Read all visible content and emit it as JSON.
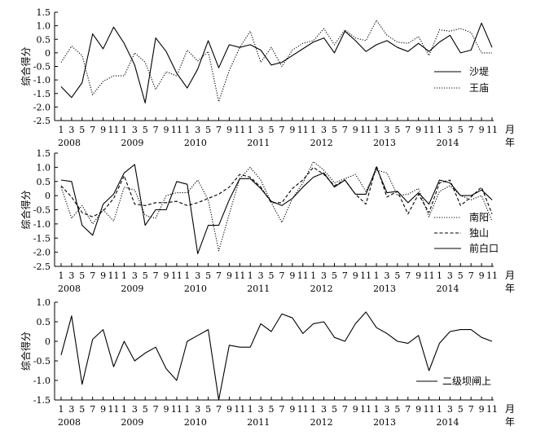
{
  "chart_data": [
    {
      "type": "line",
      "ylabel": "综合得分",
      "ylim": [
        -2.5,
        1.5
      ],
      "yticks": [
        "1.5",
        "1.0",
        "0.5",
        "0",
        "-0.5",
        "-1.0",
        "-1.5",
        "-2.0",
        "-2.5"
      ],
      "x_ticks": [
        "1",
        "3",
        "5",
        "7",
        "9",
        "11",
        "1",
        "3",
        "5",
        "7",
        "9",
        "11",
        "1",
        "3",
        "5",
        "7",
        "9",
        "11",
        "1",
        "3",
        "5",
        "7",
        "9",
        "11",
        "1",
        "3",
        "5",
        "7",
        "9",
        "11",
        "1",
        "3",
        "5",
        "7",
        "9",
        "11",
        "1",
        "3",
        "5",
        "7",
        "9",
        "11"
      ],
      "years": [
        "2008",
        "2009",
        "2010",
        "2011",
        "2012",
        "2013",
        "2014"
      ],
      "month_unit": "月",
      "year_unit": "年",
      "legend_position": "bottom-right",
      "series": [
        {
          "name": "沙堤",
          "style": "solid",
          "values": [
            -1.25,
            -1.65,
            -1.1,
            0.7,
            0.15,
            0.95,
            0.35,
            -0.45,
            -1.85,
            0.55,
            0.05,
            -0.75,
            -1.3,
            -0.6,
            0.45,
            -0.55,
            0.3,
            0.2,
            0.3,
            0.1,
            -0.45,
            -0.35,
            -0.1,
            0.15,
            0.4,
            0.55,
            0.0,
            0.8,
            0.45,
            0.05,
            0.3,
            0.45,
            0.2,
            0.05,
            0.35,
            0.05,
            0.4,
            0.65,
            0.0,
            0.1,
            1.1,
            0.2
          ]
        },
        {
          "name": "王庙",
          "style": "dotted",
          "values": [
            -0.35,
            0.25,
            -0.1,
            -1.55,
            -1.05,
            -0.85,
            -0.85,
            0.0,
            -0.35,
            -1.35,
            -0.7,
            -0.85,
            0.1,
            -0.3,
            0.05,
            -1.8,
            -0.65,
            0.2,
            0.8,
            -0.35,
            0.2,
            -0.5,
            0.1,
            0.35,
            0.45,
            0.9,
            0.3,
            0.85,
            0.55,
            0.45,
            1.2,
            0.65,
            0.4,
            0.35,
            0.6,
            -0.1,
            0.85,
            0.8,
            0.9,
            0.75,
            0.0,
            0.0
          ]
        }
      ]
    },
    {
      "type": "line",
      "ylabel": "综合得分",
      "ylim": [
        -2.5,
        1.5
      ],
      "yticks": [
        "1.5",
        "1.0",
        "0.5",
        "0",
        "-0.5",
        "-1.0",
        "-1.5",
        "-2.0",
        "-2.5"
      ],
      "x_ticks": [
        "1",
        "3",
        "5",
        "7",
        "9",
        "11",
        "1",
        "3",
        "5",
        "7",
        "9",
        "11",
        "1",
        "3",
        "5",
        "7",
        "9",
        "11",
        "1",
        "3",
        "5",
        "7",
        "9",
        "11",
        "1",
        "3",
        "5",
        "7",
        "9",
        "11",
        "1",
        "3",
        "5",
        "7",
        "9",
        "11",
        "1",
        "3",
        "5",
        "7",
        "9",
        "11"
      ],
      "years": [
        "2008",
        "2009",
        "2010",
        "2011",
        "2012",
        "2013",
        "2014"
      ],
      "month_unit": "月",
      "year_unit": "年",
      "legend_position": "bottom-right",
      "series": [
        {
          "name": "南阳",
          "style": "dotted",
          "values": [
            0.3,
            -0.8,
            -0.35,
            -1.0,
            -0.5,
            -0.9,
            0.3,
            0.2,
            -0.7,
            -0.8,
            0.0,
            0.1,
            0.1,
            0.55,
            -0.15,
            -1.95,
            -0.65,
            0.6,
            1.0,
            0.55,
            -0.25,
            -0.95,
            -0.1,
            0.45,
            1.2,
            0.9,
            0.45,
            0.6,
            0.75,
            0.15,
            0.9,
            0.8,
            0.0,
            0.05,
            0.25,
            -0.75,
            0.15,
            0.35,
            0.0,
            -0.15,
            0.0,
            -0.9
          ]
        },
        {
          "name": "独山",
          "style": "dashed",
          "values": [
            0.35,
            -0.05,
            -0.6,
            -0.75,
            -0.55,
            -0.1,
            0.7,
            -0.3,
            -0.35,
            -0.25,
            -0.25,
            -0.2,
            -0.35,
            -0.25,
            -0.1,
            0.05,
            0.3,
            0.75,
            0.65,
            0.3,
            -0.25,
            -0.25,
            0.25,
            0.55,
            1.0,
            0.75,
            0.35,
            0.55,
            0.05,
            -0.3,
            1.05,
            -0.05,
            0.15,
            -0.65,
            0.05,
            -0.6,
            0.45,
            0.55,
            -0.35,
            -0.05,
            0.3,
            -0.65
          ]
        },
        {
          "name": "前白口",
          "style": "solid",
          "values": [
            0.55,
            0.5,
            -1.05,
            -1.4,
            -0.3,
            0.05,
            0.8,
            1.1,
            -1.05,
            -0.5,
            -0.5,
            0.5,
            0.4,
            -2.05,
            -1.05,
            -1.05,
            -0.15,
            0.6,
            0.6,
            0.25,
            -0.2,
            -0.35,
            -0.1,
            0.3,
            0.65,
            0.8,
            0.3,
            0.55,
            0.05,
            0.05,
            1.0,
            0.1,
            0.15,
            -0.25,
            0.1,
            -0.3,
            0.55,
            0.45,
            0.0,
            0.0,
            0.2,
            -0.15
          ]
        }
      ]
    },
    {
      "type": "line",
      "ylabel": "综合得分",
      "ylim": [
        -1.5,
        1.0
      ],
      "yticks": [
        "1.0",
        "0.5",
        "0",
        "-0.5",
        "-1.0",
        "-1.5"
      ],
      "x_ticks": [
        "1",
        "3",
        "5",
        "7",
        "9",
        "11",
        "1",
        "3",
        "5",
        "7",
        "9",
        "11",
        "1",
        "3",
        "5",
        "7",
        "9",
        "11",
        "1",
        "3",
        "5",
        "7",
        "9",
        "11",
        "1",
        "3",
        "5",
        "7",
        "9",
        "11",
        "1",
        "3",
        "5",
        "7",
        "9",
        "11",
        "1",
        "3",
        "5",
        "7",
        "9",
        "11"
      ],
      "years": [
        "2008",
        "2009",
        "2010",
        "2011",
        "2012",
        "2013",
        "2014"
      ],
      "month_unit": "月",
      "year_unit": "年",
      "legend_position": "bottom-right",
      "series": [
        {
          "name": "二级坝闸上",
          "style": "solid",
          "values": [
            -0.35,
            0.65,
            -1.1,
            0.05,
            0.3,
            -0.65,
            0.0,
            -0.5,
            -0.3,
            -0.15,
            -0.7,
            -1.0,
            0.0,
            0.15,
            0.3,
            -1.5,
            -0.1,
            -0.15,
            -0.15,
            0.45,
            0.25,
            0.7,
            0.6,
            0.2,
            0.45,
            0.5,
            0.1,
            0.0,
            0.45,
            0.75,
            0.35,
            0.2,
            0.0,
            -0.05,
            0.15,
            -0.75,
            -0.05,
            0.25,
            0.3,
            0.3,
            0.1,
            0.0
          ]
        }
      ]
    }
  ]
}
